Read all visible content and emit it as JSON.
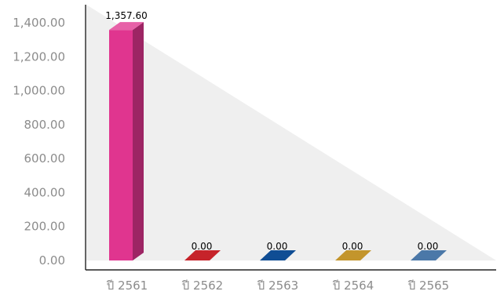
{
  "chart_data": {
    "type": "bar",
    "categories": [
      "ปี 2561",
      "ปี 2562",
      "ปี 2563",
      "ปี 2564",
      "ปี 2565"
    ],
    "values": [
      1357.6,
      0.0,
      0.0,
      0.0,
      0.0
    ],
    "data_labels": [
      "1,357.60",
      "0.00",
      "0.00",
      "0.00",
      "0.00"
    ],
    "y_ticks": [
      "0.00",
      "200.00",
      "400.00",
      "600.00",
      "800.00",
      "1,000.00",
      "1,200.00",
      "1,400.00"
    ],
    "ylim": [
      0,
      1400
    ],
    "grid": false,
    "style": "3d",
    "colors": [
      "#e0358f",
      "#c6232a",
      "#0f4d94",
      "#c3952c",
      "#4b78a8"
    ]
  }
}
